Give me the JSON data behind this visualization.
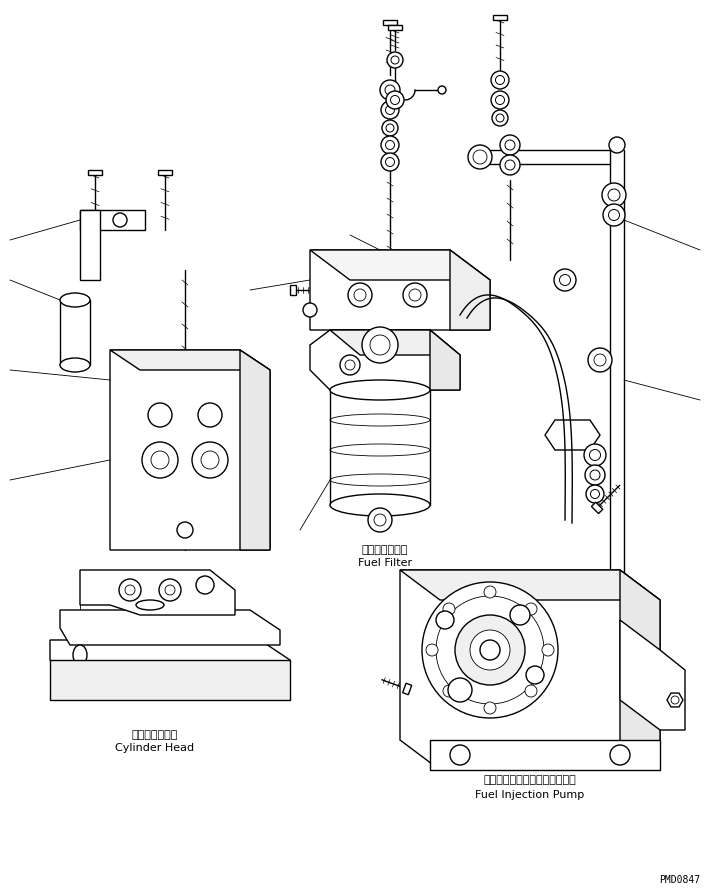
{
  "bg_color": "#ffffff",
  "line_color": "#000000",
  "figsize": [
    7.13,
    8.91
  ],
  "dpi": 100,
  "labels": {
    "fuel_filter_jp": "フェルフィルタ",
    "fuel_filter_en": "Fuel Filter",
    "cylinder_head_jp": "シリンダヘッド",
    "cylinder_head_en": "Cylinder Head",
    "fuel_injection_pump_jp": "フェルインジェクションポンプ",
    "fuel_injection_pump_en": "Fuel Injection Pump",
    "part_number": "PMD0847"
  },
  "font_size_label": 8,
  "font_size_pn": 7
}
